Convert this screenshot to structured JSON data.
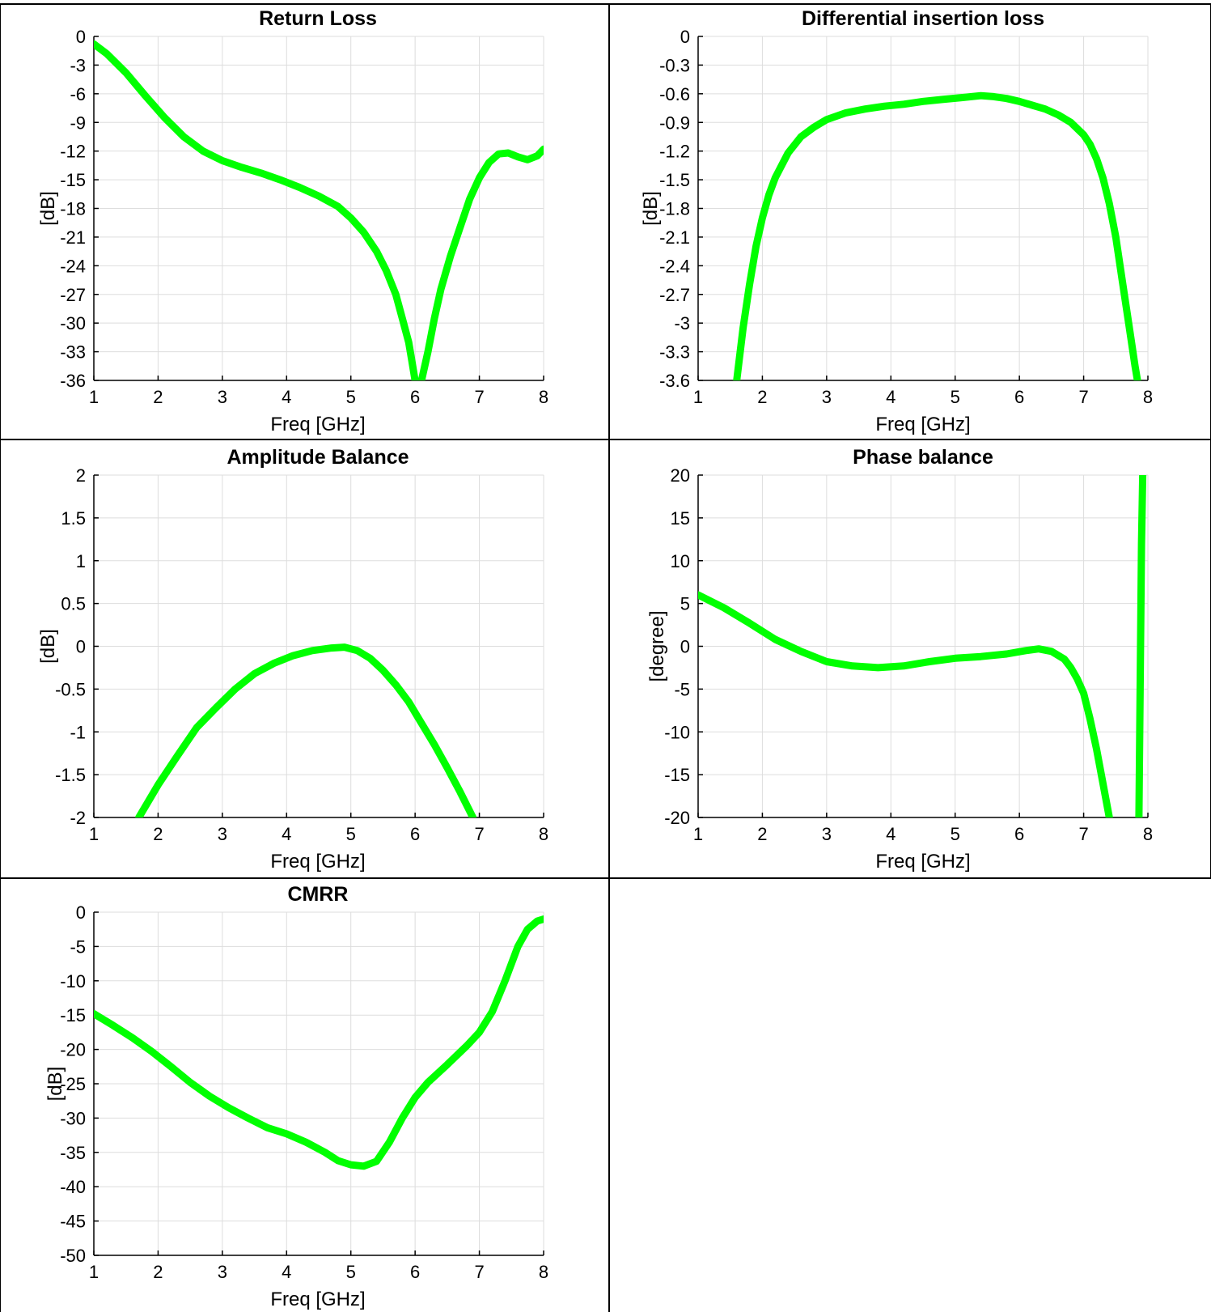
{
  "page": {
    "background_color": "#ffffff",
    "border_color": "#000000",
    "grid_color": "#dddddd",
    "line_color": "#00ff00"
  },
  "chart_data": [
    {
      "type": "line",
      "title": "Return Loss",
      "xlabel": "Freq [GHz]",
      "ylabel": "[dB]",
      "xlim": [
        1,
        8
      ],
      "ylim": [
        -36,
        0
      ],
      "xticks": [
        1,
        2,
        3,
        4,
        5,
        6,
        7,
        8
      ],
      "yticks": [
        0,
        -3,
        -6,
        -9,
        -12,
        -15,
        -18,
        -21,
        -24,
        -27,
        -30,
        -33,
        -36
      ],
      "grid": true,
      "series": [
        {
          "color": "#00ff00",
          "x": [
            1.0,
            1.2,
            1.5,
            1.8,
            2.1,
            2.4,
            2.7,
            3.0,
            3.3,
            3.6,
            3.9,
            4.2,
            4.5,
            4.8,
            5.0,
            5.2,
            5.4,
            5.55,
            5.7,
            5.8,
            5.9,
            5.95,
            6.0,
            6.05,
            6.1,
            6.2,
            6.3,
            6.4,
            6.55,
            6.7,
            6.85,
            7.0,
            7.15,
            7.3,
            7.45,
            7.6,
            7.75,
            7.9,
            8.0
          ],
          "y": [
            -0.8,
            -1.8,
            -3.8,
            -6.2,
            -8.5,
            -10.5,
            -12.0,
            -13.0,
            -13.7,
            -14.3,
            -15.0,
            -15.8,
            -16.7,
            -17.8,
            -19.0,
            -20.5,
            -22.5,
            -24.5,
            -27.0,
            -29.5,
            -32.0,
            -34.0,
            -36.0,
            -36.5,
            -36.0,
            -33.0,
            -29.5,
            -26.5,
            -23.0,
            -20.0,
            -17.0,
            -14.8,
            -13.2,
            -12.3,
            -12.2,
            -12.6,
            -12.9,
            -12.5,
            -11.8
          ]
        }
      ]
    },
    {
      "type": "line",
      "title": "Differential insertion loss",
      "xlabel": "Freq [GHz]",
      "ylabel": "[dB]",
      "xlim": [
        1,
        8
      ],
      "ylim": [
        -3.6,
        0
      ],
      "xticks": [
        1,
        2,
        3,
        4,
        5,
        6,
        7,
        8
      ],
      "yticks": [
        0,
        -0.3,
        -0.6,
        -0.9,
        -1.2,
        -1.5,
        -1.8,
        -2.1,
        -2.4,
        -2.7,
        -3,
        -3.3,
        -3.6
      ],
      "grid": true,
      "series": [
        {
          "color": "#00ff00",
          "x": [
            1.6,
            1.7,
            1.8,
            1.9,
            2.0,
            2.1,
            2.2,
            2.4,
            2.6,
            2.8,
            3.0,
            3.3,
            3.6,
            3.9,
            4.2,
            4.5,
            4.8,
            5.1,
            5.4,
            5.6,
            5.8,
            6.0,
            6.2,
            6.4,
            6.6,
            6.8,
            7.0,
            7.1,
            7.2,
            7.3,
            7.4,
            7.5,
            7.6,
            7.7,
            7.8,
            7.85
          ],
          "y": [
            -3.6,
            -3.05,
            -2.6,
            -2.2,
            -1.9,
            -1.66,
            -1.48,
            -1.22,
            -1.05,
            -0.95,
            -0.87,
            -0.8,
            -0.76,
            -0.73,
            -0.71,
            -0.68,
            -0.66,
            -0.64,
            -0.62,
            -0.63,
            -0.65,
            -0.68,
            -0.72,
            -0.76,
            -0.82,
            -0.9,
            -1.03,
            -1.13,
            -1.28,
            -1.48,
            -1.75,
            -2.1,
            -2.55,
            -3.0,
            -3.45,
            -3.65
          ]
        }
      ]
    },
    {
      "type": "line",
      "title": "Amplitude Balance",
      "xlabel": "Freq [GHz]",
      "ylabel": "[dB]",
      "xlim": [
        1,
        8
      ],
      "ylim": [
        -2,
        2
      ],
      "xticks": [
        1,
        2,
        3,
        4,
        5,
        6,
        7,
        8
      ],
      "yticks": [
        2,
        1.5,
        1,
        0.5,
        0,
        -0.5,
        -1,
        -1.5,
        -2
      ],
      "grid": true,
      "series": [
        {
          "color": "#00ff00",
          "x": [
            1.7,
            2.0,
            2.3,
            2.6,
            2.9,
            3.2,
            3.5,
            3.8,
            4.1,
            4.4,
            4.7,
            4.9,
            5.1,
            5.3,
            5.5,
            5.7,
            5.9,
            6.1,
            6.3,
            6.5,
            6.7,
            6.9
          ],
          "y": [
            -2.0,
            -1.62,
            -1.28,
            -0.95,
            -0.72,
            -0.5,
            -0.32,
            -0.2,
            -0.11,
            -0.05,
            -0.02,
            -0.01,
            -0.05,
            -0.14,
            -0.28,
            -0.45,
            -0.65,
            -0.9,
            -1.15,
            -1.42,
            -1.7,
            -2.0
          ]
        }
      ]
    },
    {
      "type": "line",
      "title": "Phase balance",
      "xlabel": "Freq [GHz]",
      "ylabel": "[degree]",
      "xlim": [
        1,
        8
      ],
      "ylim": [
        -20,
        20
      ],
      "xticks": [
        1,
        2,
        3,
        4,
        5,
        6,
        7,
        8
      ],
      "yticks": [
        20,
        15,
        10,
        5,
        0,
        -5,
        -10,
        -15,
        -20
      ],
      "grid": true,
      "series": [
        {
          "color": "#00ff00",
          "x": [
            1.0,
            1.4,
            1.8,
            2.2,
            2.6,
            3.0,
            3.4,
            3.8,
            4.2,
            4.6,
            5.0,
            5.4,
            5.8,
            6.1,
            6.3,
            6.5,
            6.7,
            6.8,
            6.9,
            7.0,
            7.1,
            7.2,
            7.3,
            7.4
          ],
          "y": [
            6.0,
            4.5,
            2.7,
            0.8,
            -0.6,
            -1.8,
            -2.3,
            -2.5,
            -2.3,
            -1.8,
            -1.4,
            -1.2,
            -0.9,
            -0.5,
            -0.3,
            -0.6,
            -1.5,
            -2.5,
            -3.8,
            -5.5,
            -8.5,
            -12.0,
            -16.0,
            -20.0
          ]
        },
        {
          "color": "#00ff00",
          "x": [
            7.86,
            7.87,
            7.88,
            7.89,
            7.9,
            7.92
          ],
          "y": [
            -20.0,
            -12.0,
            -4.0,
            4.0,
            12.0,
            20.0
          ]
        }
      ]
    },
    {
      "type": "line",
      "title": "CMRR",
      "xlabel": "Freq [GHz]",
      "ylabel": "[dB]",
      "xlim": [
        1,
        8
      ],
      "ylim": [
        -50,
        0
      ],
      "xticks": [
        1,
        2,
        3,
        4,
        5,
        6,
        7,
        8
      ],
      "yticks": [
        0,
        -5,
        -10,
        -15,
        -20,
        -25,
        -30,
        -35,
        -40,
        -45,
        -50
      ],
      "grid": true,
      "series": [
        {
          "color": "#00ff00",
          "x": [
            1.0,
            1.3,
            1.6,
            1.9,
            2.2,
            2.5,
            2.8,
            3.1,
            3.4,
            3.7,
            4.0,
            4.3,
            4.6,
            4.8,
            5.0,
            5.2,
            5.4,
            5.6,
            5.8,
            6.0,
            6.2,
            6.5,
            6.8,
            7.0,
            7.2,
            7.4,
            7.6,
            7.75,
            7.9,
            8.0
          ],
          "y": [
            -14.8,
            -16.5,
            -18.3,
            -20.3,
            -22.5,
            -24.8,
            -26.8,
            -28.5,
            -30.0,
            -31.4,
            -32.3,
            -33.5,
            -35.0,
            -36.2,
            -36.8,
            -37.0,
            -36.3,
            -33.5,
            -30.0,
            -27.0,
            -24.8,
            -22.2,
            -19.5,
            -17.5,
            -14.5,
            -10.0,
            -5.0,
            -2.5,
            -1.3,
            -1.0
          ]
        }
      ]
    }
  ]
}
